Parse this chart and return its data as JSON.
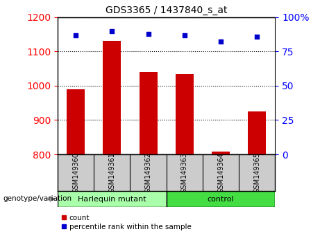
{
  "title": "GDS3365 / 1437840_s_at",
  "samples": [
    "GSM149360",
    "GSM149361",
    "GSM149362",
    "GSM149363",
    "GSM149364",
    "GSM149365"
  ],
  "bar_values": [
    990,
    1130,
    1040,
    1035,
    808,
    925
  ],
  "percentile_values": [
    87,
    90,
    88,
    87,
    82,
    86
  ],
  "ylim_left": [
    800,
    1200
  ],
  "ylim_right": [
    0,
    100
  ],
  "yticks_left": [
    800,
    900,
    1000,
    1100,
    1200
  ],
  "yticks_right": [
    0,
    25,
    50,
    75,
    100
  ],
  "bar_color": "#cc0000",
  "dot_color": "#0000cc",
  "groups": [
    {
      "label": "Harlequin mutant",
      "n_cols": 3,
      "color": "#aaffaa"
    },
    {
      "label": "control",
      "n_cols": 3,
      "color": "#44dd44"
    }
  ],
  "group_label": "genotype/variation",
  "legend_items": [
    {
      "label": "count",
      "color": "#cc0000"
    },
    {
      "label": "percentile rank within the sample",
      "color": "#0000cc"
    }
  ],
  "tick_label_bg": "#cccccc"
}
